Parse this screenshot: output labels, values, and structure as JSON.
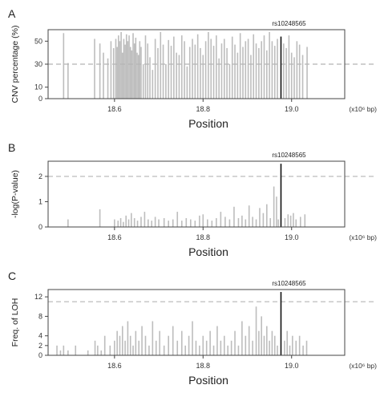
{
  "figure": {
    "panels": [
      "A",
      "B",
      "C"
    ]
  },
  "chart_data": [
    {
      "panel": "A",
      "type": "bar",
      "xlabel": "Position",
      "ylabel": "CNV percentage (%)",
      "x_unit": "(x10⁶ bp)",
      "xlim": [
        18.45,
        19.12
      ],
      "ylim": [
        0,
        60
      ],
      "xticks": [
        18.6,
        18.8,
        19.0
      ],
      "xtick_labels": [
        "18.6",
        "18.8",
        "19.0"
      ],
      "yticks": [
        0,
        10,
        30,
        50
      ],
      "ytick_labels": [
        "0",
        "10",
        "30",
        "50"
      ],
      "threshold": 30,
      "highlight": {
        "label": "rs10248565",
        "x": 18.976,
        "y": 54
      },
      "series": [
        {
          "x": [
            18.485,
            18.495,
            18.555,
            18.567,
            18.575,
            18.585,
            18.592,
            18.598,
            18.603,
            18.606,
            18.609,
            18.612,
            18.615,
            18.618,
            18.621,
            18.624,
            18.627,
            18.63,
            18.633,
            18.636,
            18.639,
            18.642,
            18.645,
            18.648,
            18.651,
            18.654,
            18.657,
            18.66,
            18.665,
            18.67,
            18.675,
            18.68,
            18.686,
            18.692,
            18.698,
            18.704,
            18.71,
            18.716,
            18.722,
            18.728,
            18.734,
            18.74,
            18.746,
            18.752,
            18.758,
            18.764,
            18.77,
            18.776,
            18.782,
            18.788,
            18.794,
            18.8,
            18.806,
            18.812,
            18.818,
            18.824,
            18.83,
            18.836,
            18.842,
            18.848,
            18.854,
            18.86,
            18.866,
            18.872,
            18.878,
            18.884,
            18.89,
            18.896,
            18.902,
            18.908,
            18.914,
            18.92,
            18.926,
            18.932,
            18.938,
            18.944,
            18.95,
            18.956,
            18.962,
            18.968,
            18.982,
            18.988,
            18.994,
            19.0,
            19.006,
            19.012,
            19.018,
            19.025,
            19.035
          ],
          "y": [
            57,
            31,
            52,
            48,
            40,
            35,
            50,
            44,
            52,
            45,
            55,
            50,
            58,
            40,
            52,
            47,
            56,
            50,
            55,
            45,
            42,
            57,
            48,
            53,
            40,
            38,
            50,
            45,
            30,
            55,
            48,
            36,
            25,
            52,
            44,
            58,
            47,
            30,
            51,
            46,
            54,
            40,
            38,
            55,
            50,
            28,
            45,
            52,
            47,
            56,
            44,
            38,
            50,
            58,
            52,
            46,
            55,
            35,
            48,
            52,
            44,
            30,
            54,
            47,
            40,
            57,
            45,
            50,
            52,
            38,
            56,
            48,
            44,
            50,
            55,
            42,
            58,
            50,
            46,
            52,
            48,
            44,
            55,
            40,
            36,
            50,
            47,
            38,
            45
          ]
        }
      ]
    },
    {
      "panel": "B",
      "type": "bar",
      "xlabel": "Position",
      "ylabel": "-log(P-value)",
      "x_unit": "(x10⁶ bp)",
      "xlim": [
        18.45,
        19.12
      ],
      "ylim": [
        0,
        2.6
      ],
      "xticks": [
        18.6,
        18.8,
        19.0
      ],
      "xtick_labels": [
        "18.6",
        "18.8",
        "19.0"
      ],
      "yticks": [
        0,
        1,
        2
      ],
      "ytick_labels": [
        "0",
        "1",
        "2"
      ],
      "threshold": 2,
      "highlight": {
        "label": "rs10248565",
        "x": 18.976,
        "y": 2.5
      },
      "series": [
        {
          "x": [
            18.495,
            18.567,
            18.6,
            18.608,
            18.614,
            18.62,
            18.626,
            18.632,
            18.638,
            18.645,
            18.652,
            18.66,
            18.668,
            18.676,
            18.684,
            18.692,
            18.7,
            18.712,
            18.722,
            18.732,
            18.742,
            18.752,
            18.762,
            18.772,
            18.782,
            18.792,
            18.8,
            18.81,
            18.82,
            18.83,
            18.84,
            18.85,
            18.86,
            18.87,
            18.88,
            18.888,
            18.896,
            18.904,
            18.912,
            18.92,
            18.928,
            18.936,
            18.944,
            18.952,
            18.96,
            18.966,
            18.97,
            18.985,
            18.992,
            18.998,
            19.004,
            19.01,
            19.02,
            19.03
          ],
          "y": [
            0.3,
            0.7,
            0.3,
            0.25,
            0.35,
            0.2,
            0.45,
            0.3,
            0.55,
            0.35,
            0.25,
            0.4,
            0.6,
            0.3,
            0.25,
            0.4,
            0.3,
            0.35,
            0.25,
            0.3,
            0.6,
            0.25,
            0.35,
            0.3,
            0.25,
            0.45,
            0.5,
            0.3,
            0.25,
            0.35,
            0.6,
            0.4,
            0.3,
            0.8,
            0.35,
            0.45,
            0.3,
            0.85,
            0.4,
            0.3,
            0.75,
            0.55,
            0.9,
            0.35,
            1.6,
            1.2,
            0.3,
            0.35,
            0.5,
            0.45,
            0.55,
            0.3,
            0.4,
            0.5
          ]
        }
      ]
    },
    {
      "panel": "C",
      "type": "bar",
      "xlabel": "Position",
      "ylabel": "Freq. of LOH",
      "x_unit": "(x10⁶ bp)",
      "xlim": [
        18.45,
        19.12
      ],
      "ylim": [
        0,
        13.5
      ],
      "xticks": [
        18.6,
        18.8,
        19.0
      ],
      "xtick_labels": [
        "18.6",
        "18.8",
        "19.0"
      ],
      "yticks": [
        0,
        2,
        4,
        8,
        12
      ],
      "ytick_labels": [
        "0",
        "2",
        "4",
        "8",
        "12"
      ],
      "threshold": 11,
      "highlight": {
        "label": "rs10248565",
        "x": 18.976,
        "y": 13
      },
      "series": [
        {
          "x": [
            18.47,
            18.478,
            18.485,
            18.495,
            18.512,
            18.54,
            18.556,
            18.562,
            18.57,
            18.578,
            18.59,
            18.6,
            18.606,
            18.612,
            18.618,
            18.624,
            18.63,
            18.636,
            18.642,
            18.648,
            18.655,
            18.662,
            18.67,
            18.678,
            18.686,
            18.694,
            18.702,
            18.712,
            18.722,
            18.732,
            18.742,
            18.752,
            18.76,
            18.768,
            18.776,
            18.784,
            18.792,
            18.8,
            18.808,
            18.816,
            18.824,
            18.832,
            18.84,
            18.848,
            18.856,
            18.864,
            18.872,
            18.88,
            18.888,
            18.896,
            18.904,
            18.912,
            18.92,
            18.926,
            18.932,
            18.938,
            18.944,
            18.95,
            18.956,
            18.962,
            18.968,
            18.984,
            18.99,
            18.996,
            19.002,
            19.01,
            19.018,
            19.026,
            19.034
          ],
          "y": [
            2,
            1,
            2,
            1,
            2,
            1,
            3,
            2,
            1,
            4,
            2,
            3,
            5,
            4,
            6,
            3,
            7,
            4,
            2,
            5,
            3,
            6,
            4,
            2,
            7,
            3,
            5,
            2,
            4,
            6,
            3,
            5,
            2,
            4,
            7,
            3,
            2,
            4,
            3,
            5,
            2,
            6,
            3,
            4,
            2,
            3,
            5,
            2,
            7,
            4,
            6,
            3,
            10,
            5,
            8,
            4,
            6,
            3,
            5,
            4,
            2,
            3,
            5,
            2,
            4,
            3,
            4,
            2,
            3
          ]
        }
      ]
    }
  ]
}
